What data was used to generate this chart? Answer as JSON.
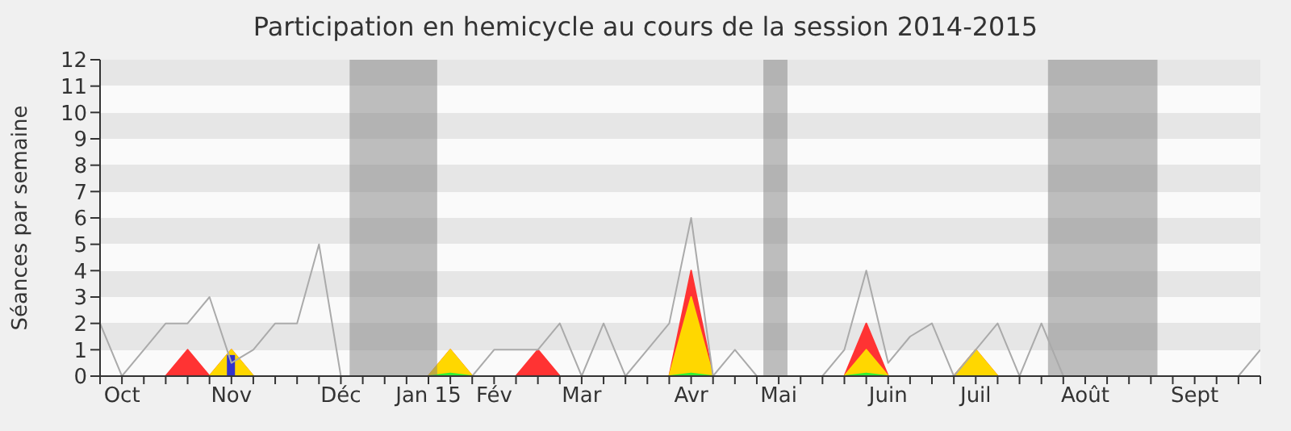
{
  "chart_data": {
    "type": "area",
    "title": "Participation en hemicycle au cours de la session 2014-2015",
    "ylabel": "Séances par semaine",
    "categories": [
      null,
      "Oct",
      null,
      null,
      null,
      null,
      "Nov",
      null,
      null,
      null,
      null,
      "Déc",
      null,
      null,
      null,
      "Jan 15",
      null,
      null,
      "Fév",
      null,
      null,
      null,
      "Mar",
      null,
      null,
      null,
      null,
      "Avr",
      null,
      null,
      null,
      "Mai",
      null,
      null,
      null,
      null,
      "Juin",
      null,
      null,
      null,
      "Juil",
      null,
      null,
      null,
      null,
      "Août",
      null,
      null,
      null,
      null,
      "Sept",
      null,
      null,
      null
    ],
    "ylim": [
      0,
      12
    ],
    "yticks": [
      0,
      1,
      2,
      3,
      4,
      5,
      6,
      7,
      8,
      9,
      10,
      11,
      12
    ],
    "legend": false,
    "series": [
      {
        "color": "#ff3333",
        "values": [
          0,
          0,
          0,
          0,
          1,
          0,
          1,
          0,
          0,
          0,
          0,
          0,
          0,
          0,
          0,
          0,
          1,
          0,
          0,
          0,
          1,
          0,
          0,
          0,
          0,
          0,
          0,
          4,
          0,
          0,
          0,
          0,
          0,
          0,
          0,
          2,
          0,
          0,
          0,
          0,
          1,
          0,
          0,
          0,
          0,
          0,
          0,
          0,
          0,
          0,
          0,
          0,
          0,
          0
        ]
      },
      {
        "color": "#ffd700",
        "values": [
          0,
          0,
          0,
          0,
          0,
          0,
          1,
          0,
          0,
          0,
          0,
          0,
          0,
          0,
          0,
          0,
          1,
          0,
          0,
          0,
          0,
          0,
          0,
          0,
          0,
          0,
          0,
          3,
          0,
          0,
          0,
          0,
          0,
          0,
          0,
          1,
          0,
          0,
          0,
          0,
          1,
          0,
          0,
          0,
          0,
          0,
          0,
          0,
          0,
          0,
          0,
          0,
          0,
          0
        ]
      },
      {
        "color": "#33ee33",
        "values": [
          0,
          0,
          0,
          0,
          0,
          0,
          0,
          0,
          0,
          0,
          0,
          0,
          0,
          0,
          0,
          0,
          0.1,
          0,
          0,
          0,
          0,
          0,
          0,
          0,
          0,
          0,
          0,
          0.1,
          0,
          0,
          0,
          0,
          0,
          0,
          0,
          0.1,
          0,
          0,
          0,
          0,
          0,
          0,
          0,
          0,
          0,
          0,
          0,
          0,
          0,
          0,
          0,
          0,
          0,
          0
        ]
      },
      {
        "type": "bar",
        "color": "#3333cc",
        "values": [
          null,
          null,
          null,
          null,
          null,
          null,
          0.8,
          null,
          null,
          null,
          null,
          null,
          null,
          null,
          null,
          null,
          null,
          null,
          null,
          null,
          null,
          null,
          null,
          null,
          null,
          null,
          null,
          null,
          null,
          null,
          null,
          null,
          null,
          null,
          null,
          null,
          null,
          null,
          null,
          null,
          null,
          null,
          null,
          null,
          null,
          null,
          null,
          null,
          null,
          null,
          null,
          null,
          null,
          null
        ]
      },
      {
        "type": "line",
        "color": "#aaaaaa",
        "values": [
          2,
          0,
          1,
          2,
          2,
          3,
          0.5,
          1,
          2,
          2,
          5,
          0,
          null,
          null,
          null,
          0,
          0,
          0,
          1,
          1,
          1,
          2,
          0,
          2,
          0,
          1,
          2,
          6,
          0,
          1,
          0,
          null,
          0,
          0,
          1,
          4,
          0.5,
          1.5,
          2,
          0,
          1,
          2,
          0,
          2,
          0,
          null,
          null,
          null,
          0,
          0,
          0,
          0,
          0,
          1
        ]
      }
    ]
  }
}
